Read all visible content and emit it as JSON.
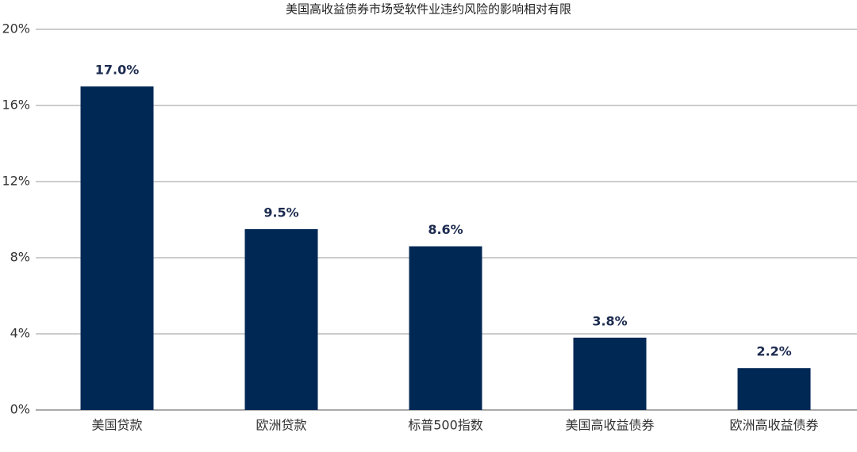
{
  "chart_data": {
    "type": "bar",
    "title": "美国高收益债券市场受软件业违约风险的影响相对有限",
    "categories": [
      "美国贷款",
      "欧洲贷款",
      "标普500指数",
      "美国高收益债券",
      "欧洲高收益债券"
    ],
    "values": [
      17.0,
      9.5,
      8.6,
      3.8,
      2.2
    ],
    "value_labels": [
      "17.0%",
      "9.5%",
      "8.6%",
      "3.8%",
      "2.2%"
    ],
    "color": "#002855",
    "ylim": [
      0,
      20
    ],
    "yticks": [
      {
        "value": 0,
        "label": "0%"
      },
      {
        "value": 4,
        "label": "4%"
      },
      {
        "value": 8,
        "label": "8%"
      },
      {
        "value": 12,
        "label": "12%"
      },
      {
        "value": 16,
        "label": "16%"
      },
      {
        "value": 20,
        "label": "20%"
      }
    ],
    "grid": true
  }
}
